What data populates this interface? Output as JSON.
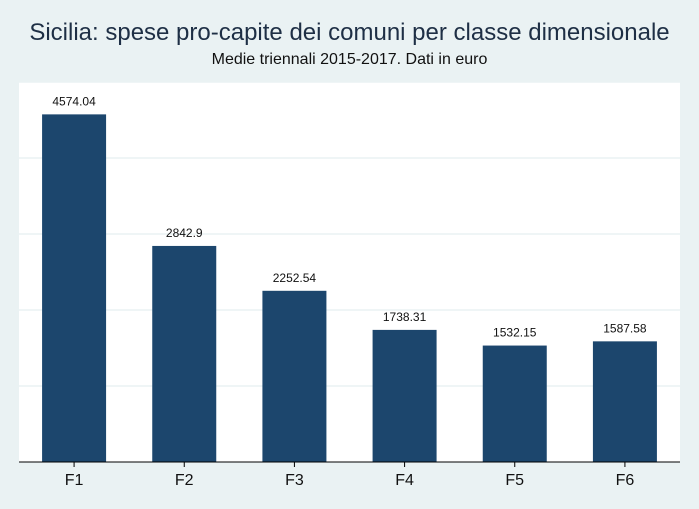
{
  "chart_data": {
    "type": "bar",
    "title": "Sicilia: spese pro-capite dei comuni per classe dimensionale",
    "subtitle": "Medie triennali 2015-2017. Dati in euro",
    "xlabel": "",
    "ylabel": "",
    "categories": [
      "F1",
      "F2",
      "F3",
      "F4",
      "F5",
      "F6"
    ],
    "series": [
      {
        "values": [
          4574.04,
          2842.9,
          2252.54,
          1738.31,
          1532.15,
          1587.58
        ],
        "labels": [
          "4574.04",
          "2842.9",
          "2252.54",
          "1738.31",
          "1532.15",
          "1587.58"
        ]
      }
    ],
    "ylim": [
      0,
      5000
    ],
    "grid": true,
    "legend": "none",
    "colors": {
      "bar": "#1c466d",
      "background": "#eaf2f3",
      "plot_background": "#ffffff",
      "gridline": "#eaf2f3",
      "axis": "#000000"
    }
  }
}
